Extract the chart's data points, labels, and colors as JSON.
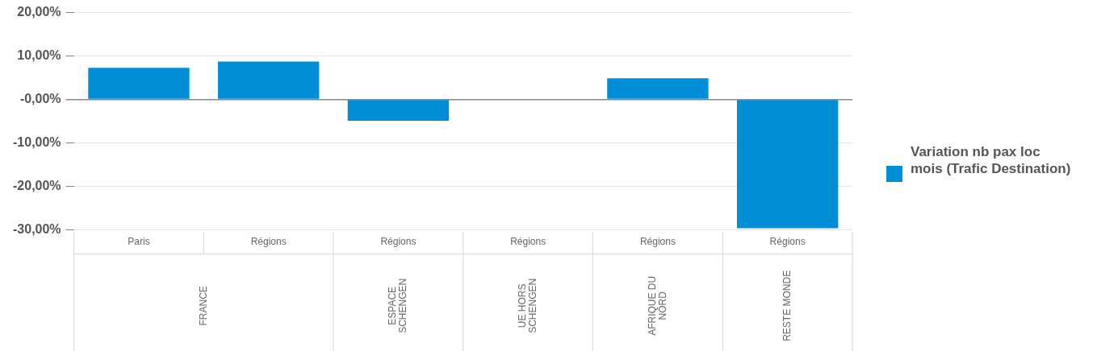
{
  "chart_data": {
    "type": "bar",
    "categories": [
      "Paris",
      "Régions",
      "Régions",
      "Régions",
      "Régions",
      "Régions"
    ],
    "series": [
      {
        "name": "Variation nb pax loc mois (Trafic Destination)",
        "color": "#008ed6",
        "values": [
          7.3,
          8.7,
          -4.9,
          0,
          4.9,
          -29.6
        ]
      }
    ],
    "ylim": [
      -30,
      20
    ],
    "yticks": [
      {
        "value": -30,
        "label": "-30,00%"
      },
      {
        "value": -20,
        "label": "-20,00%"
      },
      {
        "value": -10,
        "label": "-10,00%"
      },
      {
        "value": 0,
        "label": "-0,00%"
      },
      {
        "value": 10,
        "label": "10,00%"
      },
      {
        "value": 20,
        "label": "20,00%"
      }
    ],
    "grid": "y",
    "legend": "right",
    "annotations": [
      "FRANCE",
      "ESPACE\nSCHENGEN",
      "UE HORS\nSCHENGEN",
      "AFRIQUE DU\nNORD",
      "RESTE MONDE"
    ]
  }
}
